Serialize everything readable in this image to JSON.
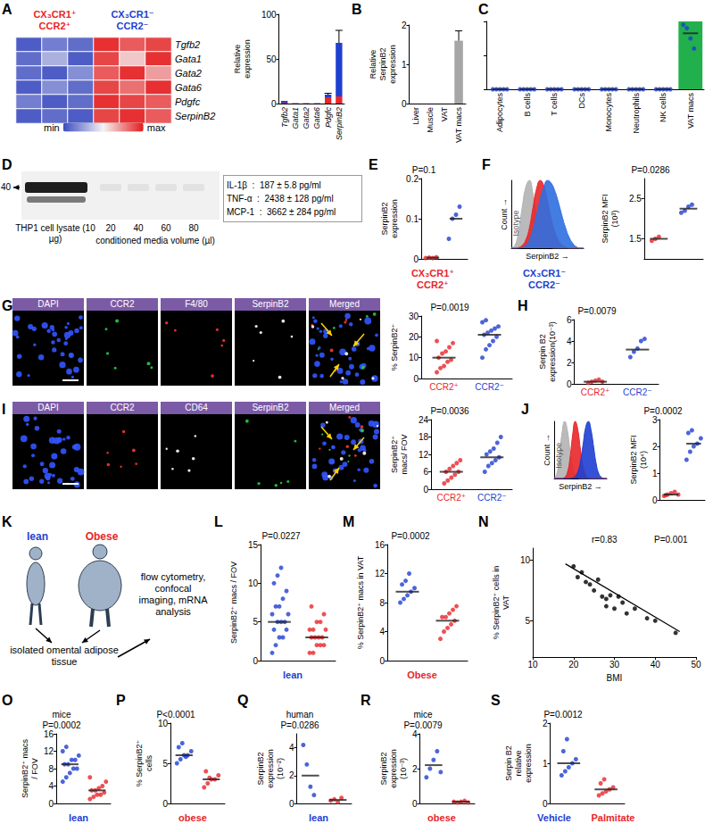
{
  "chart_data": [
    {
      "panel": "A",
      "type": "heatmap",
      "column_groups": [
        {
          "label": "CX₃CR1⁺ CCR2⁺",
          "color": "#e8262a"
        },
        {
          "label": "CX₃CR1⁻ CCR2⁻",
          "color": "#1f3fd1"
        }
      ],
      "rows": [
        "Tgfb2",
        "Gata1",
        "Gata2",
        "Gata6",
        "Pdgfc",
        "SerpinB2"
      ],
      "cells": [
        [
          0.05,
          0.15,
          0.1,
          0.95,
          0.85,
          0.9
        ],
        [
          0.1,
          0.3,
          0.05,
          0.9,
          0.6,
          0.95
        ],
        [
          0.1,
          0.05,
          0.2,
          0.85,
          0.95,
          0.7
        ],
        [
          0.05,
          0.2,
          0.1,
          0.9,
          0.8,
          0.95
        ],
        [
          0.15,
          0.05,
          0.1,
          0.95,
          0.9,
          0.85
        ],
        [
          0.05,
          0.1,
          0.05,
          0.9,
          0.95,
          0.85
        ]
      ],
      "color_scale": {
        "range": [
          0,
          1
        ],
        "labels": [
          "min",
          "max"
        ],
        "colors": [
          "#3b4cc0",
          "#f4f4f4",
          "#e41a1c"
        ]
      }
    },
    {
      "type": "bar",
      "ylabel": "Relative expression",
      "categories": [
        "Tgfb2",
        "Gata1",
        "Gata2",
        "Gata6",
        "Pdgfc",
        "SerpinB2"
      ],
      "stacked": true,
      "series": [
        {
          "color": "#e8262a",
          "values": [
            1,
            0.2,
            0.2,
            0.2,
            7,
            8
          ]
        },
        {
          "color": "#1f3fd1",
          "values": [
            2,
            0.3,
            0.3,
            0.3,
            3,
            60
          ],
          "errors": [
            0,
            0,
            0,
            0,
            1.5,
            14
          ]
        }
      ],
      "ylim": [
        0,
        100
      ],
      "yticks": [
        0,
        50,
        100
      ]
    },
    {
      "panel": "B",
      "type": "bar",
      "ylabel": "Relative SerpinB2 expression",
      "categories": [
        "Liver",
        "Muscle",
        "VAT",
        "VAT macs"
      ],
      "values": [
        0,
        0,
        0,
        1.6
      ],
      "errors": [
        0,
        0,
        0,
        0.25
      ],
      "colors": [
        "#999999",
        "#999999",
        "#999999",
        "#a6a6a6"
      ],
      "ylim": [
        0,
        2
      ],
      "yticks": [
        0,
        1,
        2
      ]
    },
    {
      "panel": "C",
      "type": "dotplot",
      "categories": [
        "Adipocytes",
        "B cells",
        "T cells",
        "DCs",
        "Monocytes",
        "Neutrophils",
        "NK cells",
        "VAT macs"
      ],
      "colors": [
        "#1f3fd1",
        "#1f3fd1",
        "#1f3fd1",
        "#1f3fd1",
        "#1f3fd1",
        "#1f3fd1",
        "#1f3fd1",
        "#1f3fd1"
      ],
      "groups": [
        [
          0,
          0,
          0,
          0,
          0
        ],
        [
          0,
          0,
          0,
          0,
          0
        ],
        [
          0,
          0,
          0,
          0,
          0
        ],
        [
          0,
          0,
          0,
          0,
          0
        ],
        [
          0,
          0,
          0,
          0,
          0
        ],
        [
          0,
          0,
          0,
          0,
          0
        ],
        [
          0,
          0,
          0,
          0,
          0
        ],
        [
          1.9,
          1.8,
          1.5,
          1.2
        ]
      ],
      "medians": [
        0,
        0,
        0,
        0,
        0,
        0,
        0,
        1.65
      ],
      "ylim": [
        0,
        2
      ],
      "yticks": [
        0,
        1,
        2
      ],
      "tick_labels": "x"
    },
    {
      "panel": "E",
      "type": "dotplot",
      "ylabel": "SerpinB2 expression",
      "annotation": "P=0.1",
      "categories": [
        null,
        null
      ],
      "colors": [
        "#e8262a",
        "#1f3fd1"
      ],
      "groups": [
        [
          0.002,
          0.003,
          0.002,
          0.004
        ],
        [
          0.05,
          0.1,
          0.11,
          0.13
        ]
      ],
      "medians": [
        0.003,
        0.1
      ],
      "ylim": [
        0,
        0.2
      ],
      "yticks": [
        0,
        0.1,
        0.2
      ]
    },
    {
      "panel": "F",
      "type": "area",
      "xlabel": "SerpinB2 →",
      "ylabel": "Count →",
      "x": [
        0,
        1,
        2,
        3,
        4,
        5,
        6,
        7,
        8,
        9,
        10,
        11,
        12,
        13,
        14,
        15,
        16,
        17,
        18,
        19,
        20
      ],
      "series": [
        {
          "name": "Isotype",
          "color": "#b3b3b3",
          "values": [
            0,
            4,
            25,
            60,
            90,
            100,
            80,
            50,
            25,
            10,
            4,
            1,
            0,
            0,
            0,
            0,
            0,
            0,
            0,
            0,
            0
          ]
        },
        {
          "color": "#e8262a",
          "values": [
            0,
            0,
            1,
            4,
            12,
            30,
            60,
            88,
            100,
            92,
            70,
            45,
            25,
            12,
            5,
            2,
            0,
            0,
            0,
            0,
            0
          ]
        },
        {
          "color": "#2f6fe0",
          "values": [
            0,
            0,
            0,
            1,
            4,
            12,
            28,
            50,
            72,
            90,
            100,
            96,
            85,
            68,
            48,
            30,
            16,
            7,
            2,
            0,
            0
          ]
        }
      ],
      "xlim": [
        0,
        20
      ],
      "ylim": [
        0,
        100
      ],
      "xticks": [],
      "yticks": [],
      "tick_labels": false
    },
    {
      "type": "dotplot",
      "ylabel": "SerpinB2 MFI (10³)",
      "annotation": "P=0.0286",
      "categories": [
        null,
        null
      ],
      "colors": [
        "#e8262a",
        "#1f3fd1"
      ],
      "groups": [
        [
          1.45,
          1.5,
          1.55
        ],
        [
          2.15,
          2.2,
          2.3,
          2.35
        ]
      ],
      "medians": [
        1.5,
        2.25
      ],
      "ylim": [
        1,
        3
      ],
      "yticks": [
        1.5,
        2.5
      ]
    },
    {
      "type": "dotplot",
      "ylabel": "% SerpinB2⁺",
      "annotation": "P=0.0019",
      "categories": [
        "CCR2⁺",
        "CCR2⁻"
      ],
      "colors": [
        "#e8262a",
        "#1f3fd1"
      ],
      "groups": [
        [
          3,
          5,
          6,
          8,
          9,
          10,
          12,
          13,
          15,
          17,
          18
        ],
        [
          10,
          14,
          16,
          18,
          20,
          21,
          22,
          23,
          24,
          25,
          27,
          28
        ]
      ],
      "medians": [
        10,
        21
      ],
      "ylim": [
        0,
        30
      ],
      "yticks": [
        0,
        10,
        20,
        30
      ]
    },
    {
      "panel": "H",
      "type": "dotplot",
      "ylabel": "Serpin B2 expression(10⁻³)",
      "annotation": "P=0.0079",
      "categories": [
        "CCR2⁺",
        "CCR2⁻"
      ],
      "colors": [
        "#e8262a",
        "#1f3fd1"
      ],
      "groups": [
        [
          0.1,
          0.2,
          0.3,
          0.4,
          0.2
        ],
        [
          2.5,
          3.0,
          3.3,
          4.0,
          4.2
        ]
      ],
      "medians": [
        0.2,
        3.2
      ],
      "ylim": [
        0,
        6
      ],
      "yticks": [
        0,
        2,
        4,
        6
      ]
    },
    {
      "type": "dotplot",
      "ylabel": "SerpinB2⁺ macs/ FOV",
      "annotation": "P=0.0036",
      "categories": [
        "CCR2⁺",
        "CCR2⁻"
      ],
      "colors": [
        "#e8262a",
        "#1f3fd1"
      ],
      "groups": [
        [
          2,
          3,
          4,
          5,
          6,
          6,
          7,
          8,
          9,
          10
        ],
        [
          6,
          8,
          9,
          10,
          11,
          12,
          13,
          14,
          16,
          18
        ]
      ],
      "medians": [
        6,
        11
      ],
      "ylim": [
        0,
        24
      ],
      "yticks": [
        0,
        6,
        12,
        18,
        24
      ]
    },
    {
      "panel": "J",
      "type": "area",
      "xlabel": "SerpinB2 →",
      "ylabel": "Count →",
      "x": [
        0,
        1,
        2,
        3,
        4,
        5,
        6,
        7,
        8,
        9,
        10,
        11,
        12,
        13,
        14,
        15,
        16,
        17,
        18,
        19,
        20
      ],
      "series": [
        {
          "name": "Isotype",
          "color": "#b3b3b3",
          "values": [
            0,
            8,
            40,
            80,
            100,
            85,
            50,
            20,
            6,
            1,
            0,
            0,
            0,
            0,
            0,
            0,
            0,
            0,
            0,
            0,
            0
          ]
        },
        {
          "color": "#e8262a",
          "values": [
            0,
            0,
            0,
            0,
            2,
            10,
            35,
            75,
            100,
            85,
            50,
            20,
            6,
            1,
            0,
            0,
            0,
            0,
            0,
            0,
            0
          ]
        },
        {
          "color": "#1f3fd1",
          "values": [
            0,
            0,
            0,
            0,
            0,
            0,
            0,
            1,
            4,
            12,
            30,
            60,
            90,
            100,
            85,
            55,
            25,
            8,
            2,
            0,
            0
          ]
        }
      ],
      "xlim": [
        0,
        20
      ],
      "ylim": [
        0,
        100
      ],
      "xticks": [],
      "yticks": [],
      "tick_labels": false
    },
    {
      "type": "dotplot",
      "ylabel": "SerpinB2 MFI (10⁴)",
      "annotation": "P=0.0002",
      "categories": [
        null,
        null
      ],
      "colors": [
        "#e8262a",
        "#1f3fd1"
      ],
      "groups": [
        [
          0.15,
          0.2,
          0.25,
          0.3,
          0.2,
          0.18
        ],
        [
          1.5,
          1.8,
          2.0,
          2.1,
          2.3,
          2.5,
          2.6
        ]
      ],
      "medians": [
        0.2,
        2.1
      ],
      "ylim": [
        0,
        3
      ],
      "yticks": [
        0,
        1,
        2,
        3
      ]
    },
    {
      "panel": "L",
      "type": "dotplot",
      "ylabel": "SerpinB2⁺ macs / FOV",
      "annotation": "P=0.0227",
      "categories": [
        null,
        null
      ],
      "colors": [
        "#1f3fd1",
        "#e8262a"
      ],
      "groups": [
        [
          1,
          2,
          3,
          3,
          4,
          4,
          5,
          5,
          5,
          6,
          6,
          7,
          7,
          8,
          9,
          10,
          11,
          12
        ],
        [
          1,
          1,
          2,
          2,
          2,
          3,
          3,
          3,
          3,
          4,
          4,
          4,
          5,
          5,
          6,
          7
        ]
      ],
      "medians": [
        5,
        3
      ],
      "ylim": [
        0,
        15
      ],
      "yticks": [
        0,
        5,
        10,
        15
      ]
    },
    {
      "panel": "M",
      "type": "dotplot",
      "ylabel": "% SerpinB2⁺ macs in VAT",
      "annotation": "P=0.0002",
      "categories": [
        null,
        null
      ],
      "colors": [
        "#1f3fd1",
        "#e8262a"
      ],
      "groups": [
        [
          8,
          8.5,
          9,
          9.5,
          10,
          10.5,
          11,
          12
        ],
        [
          3,
          4,
          4.5,
          5,
          5.5,
          6,
          6,
          6.5,
          7,
          7.5
        ]
      ],
      "medians": [
        9.5,
        5.5
      ],
      "ylim": [
        0,
        16
      ],
      "yticks": [
        0,
        4,
        8,
        12,
        16
      ]
    },
    {
      "panel": "N",
      "type": "scatter",
      "xlabel": "BMI",
      "ylabel": "% SerpinB2⁺ cells in VAT",
      "annotations": [
        "r=0.83",
        "P=0.001"
      ],
      "x": [
        20,
        21,
        22,
        23,
        24,
        25,
        26,
        27,
        28,
        28,
        29,
        30,
        31,
        32,
        33,
        35,
        38,
        40,
        45
      ],
      "values": [
        9.5,
        8.6,
        9.0,
        8.2,
        8.0,
        7.5,
        8.4,
        7.0,
        6.2,
        6.8,
        7.1,
        6.0,
        7.0,
        6.5,
        5.6,
        6.0,
        5.2,
        5.0,
        4.0
      ],
      "fit": {
        "x": [
          18,
          46
        ],
        "values": [
          9.7,
          4.1
        ]
      },
      "color": "#000000",
      "xlim": [
        10,
        50
      ],
      "xticks": [
        10,
        20,
        30,
        40,
        50
      ],
      "ylim": [
        2,
        11
      ],
      "yticks": [
        5,
        10
      ]
    },
    {
      "panel": "O",
      "type": "dotplot",
      "title": "mice",
      "ylabel": "SerpinB2⁺ macs / FOV",
      "annotation": "P=0.0002",
      "categories": [
        null,
        null
      ],
      "colors": [
        "#1f3fd1",
        "#e8262a"
      ],
      "groups": [
        [
          5,
          6,
          7,
          8,
          8,
          9,
          9,
          10,
          10,
          11,
          12,
          13
        ],
        [
          1,
          1.5,
          2,
          2,
          2.5,
          3,
          3,
          3.5,
          4,
          5,
          6
        ]
      ],
      "medians": [
        9,
        3
      ],
      "ylim": [
        0,
        16
      ],
      "yticks": [
        0,
        4,
        8,
        12,
        16
      ]
    },
    {
      "panel": "P",
      "type": "dotplot",
      "ylabel": "% SerpinB2⁺ cells",
      "annotation": "P<0.0001",
      "categories": [
        null,
        null
      ],
      "colors": [
        "#1f3fd1",
        "#e8262a"
      ],
      "groups": [
        [
          5,
          5.5,
          6,
          6,
          6.5,
          7,
          7.5,
          5.8
        ],
        [
          2,
          2.5,
          3,
          3,
          3.5,
          4,
          3.2
        ]
      ],
      "medians": [
        6,
        3
      ],
      "ylim": [
        0,
        10
      ],
      "yticks": [
        0,
        5,
        10
      ]
    },
    {
      "panel": "Q",
      "type": "dotplot",
      "title": "human",
      "ylabel": "SerpinB2 expression (10⁻²)",
      "annotation": "P=0.0286",
      "categories": [
        null,
        null
      ],
      "colors": [
        "#1f3fd1",
        "#e8262a"
      ],
      "groups": [
        [
          4.2,
          2.8,
          1.2,
          0.6
        ],
        [
          0.2,
          0.3,
          0.1,
          0.4
        ]
      ],
      "medians": [
        2,
        0.25
      ],
      "ylim": [
        0,
        5
      ],
      "yticks": [
        0,
        2,
        4
      ]
    },
    {
      "panel": "R",
      "type": "dotplot",
      "title": "mice",
      "ylabel": "SerpinB2 expression (10⁻³)",
      "annotation": "P=0.0079",
      "categories": [
        null,
        null
      ],
      "colors": [
        "#1f3fd1",
        "#e8262a"
      ],
      "groups": [
        [
          1.5,
          2.0,
          2.5,
          3.0,
          1.8
        ],
        [
          0.1,
          0.05,
          0.1,
          0.15,
          0.05
        ]
      ],
      "medians": [
        2.2,
        0.1
      ],
      "ylim": [
        0,
        4
      ],
      "yticks": [
        0,
        2,
        4
      ]
    },
    {
      "panel": "S",
      "type": "dotplot",
      "ylabel": "Serpin B2 relative expression",
      "annotation": "P=0.0012",
      "categories": [
        null,
        null
      ],
      "colors": [
        "#1f3fd1",
        "#e8262a"
      ],
      "groups": [
        [
          0.7,
          0.8,
          0.9,
          1.0,
          1.1,
          1.3,
          1.6
        ],
        [
          0.2,
          0.25,
          0.3,
          0.35,
          0.4,
          0.5,
          0.6
        ]
      ],
      "medians": [
        1.0,
        0.35
      ],
      "ylim": [
        0,
        2
      ],
      "yticks": [
        0,
        1,
        2
      ]
    }
  ],
  "blot": {
    "panel": "D",
    "marker": "40",
    "lysate_label": "THP1 cell lysate (10 µg)",
    "volumes": [
      "20",
      "40",
      "60",
      "80"
    ],
    "media_label": "conditioned media volume (µl)",
    "cytokines": [
      "IL-1β  :  187 ± 5.8 pg/ml",
      "TNF-α  :  2438 ± 128 pg/ml",
      "MCP-1  :  3662 ± 284 pg/ml"
    ]
  },
  "micrographs": [
    {
      "panel": "G",
      "channels": [
        "DAPI",
        "CCR2",
        "F4/80",
        "SerpinB2",
        "Merged"
      ]
    },
    {
      "panel": "I",
      "channels": [
        "DAPI",
        "CCR2",
        "CD64",
        "SerpinB2",
        "Merged"
      ]
    }
  ],
  "schematic": {
    "panel": "K",
    "subjects": [
      {
        "label": "lean",
        "color": "#1f3fd1"
      },
      {
        "label": "Obese",
        "color": "#e8262a"
      }
    ],
    "sample": "isolated omental adipose tissue",
    "analysis": "flow cytometry, confocal imaging, mRNA analysis"
  },
  "group_labels": [
    {
      "texts": [
        "CX₃CR1⁺ CCR2⁺",
        "CX₃CR1⁻ CCR2⁻"
      ],
      "colors": [
        "#e8262a",
        "#1f3fd1"
      ]
    },
    {
      "texts": [
        "lean",
        "Obese"
      ],
      "colors": [
        "#1f3fd1",
        "#e8262a"
      ]
    },
    {
      "texts": [
        "lean",
        "obese"
      ],
      "colors": [
        "#1f3fd1",
        "#e8262a"
      ]
    },
    {
      "texts": [
        "lean",
        "obese"
      ],
      "colors": [
        "#1f3fd1",
        "#e8262a"
      ]
    },
    {
      "texts": [
        "Vehicle",
        "Palmitate"
      ],
      "colors": [
        "#1f3fd1",
        "#e8262a"
      ]
    }
  ]
}
